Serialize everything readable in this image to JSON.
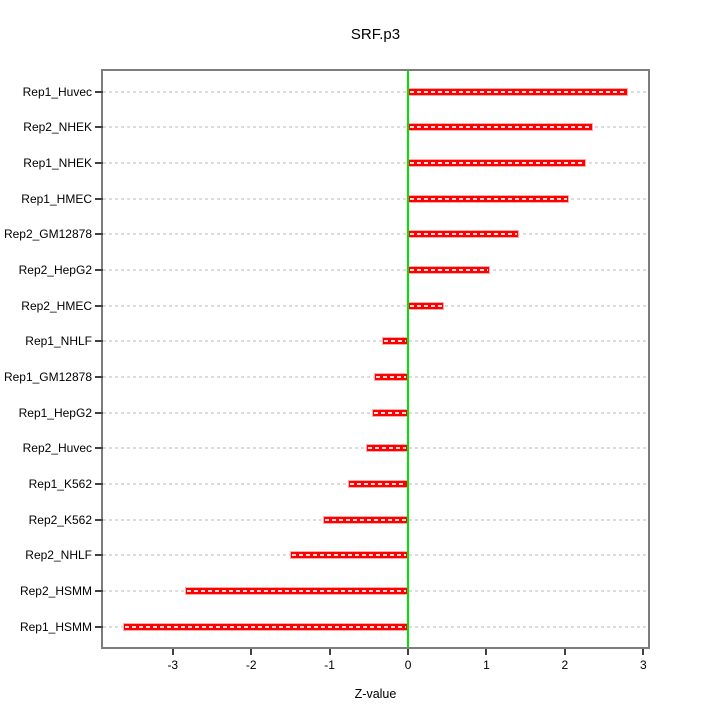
{
  "figure": {
    "title": "SRF.p3",
    "xlabel": "Z-value"
  },
  "chart_data": {
    "type": "bar",
    "orientation": "horizontal",
    "title": "SRF.p3",
    "xlabel": "Z-value",
    "ylabel": "",
    "categories": [
      "Rep1_Huvec",
      "Rep2_NHEK",
      "Rep1_NHEK",
      "Rep1_HMEC",
      "Rep2_GM12878",
      "Rep2_HepG2",
      "Rep2_HMEC",
      "Rep1_NHLF",
      "Rep1_GM12878",
      "Rep1_HepG2",
      "Rep2_Huvec",
      "Rep1_K562",
      "Rep2_K562",
      "Rep2_NHLF",
      "Rep2_HSMM",
      "Rep1_HSMM"
    ],
    "values": [
      2.8,
      2.36,
      2.27,
      2.05,
      1.41,
      1.04,
      0.46,
      -0.33,
      -0.44,
      -0.46,
      -0.54,
      -0.76,
      -1.08,
      -1.5,
      -2.85,
      -3.63
    ],
    "x_ticks": [
      "-3",
      "-2",
      "-1",
      "0",
      "1",
      "2",
      "3"
    ],
    "x_tick_values": [
      -3,
      -2,
      -1,
      0,
      1,
      2,
      3
    ],
    "xlim": [
      -3.89,
      3.06
    ],
    "grid": "dashed-horizontal-per-category",
    "legend": "none",
    "zero_reference_line": 0,
    "colors": {
      "bar_fill": "#ff0000",
      "bar_edge": "#ffaaaa",
      "bar_stripe": "rgba(255,255,255,0.85)",
      "zero_line": "#00e400",
      "gridline": "#dcdcdc",
      "frame": "#7d7d7d",
      "tick": "#404040",
      "text": "#000000",
      "background": "#ffffff"
    }
  }
}
